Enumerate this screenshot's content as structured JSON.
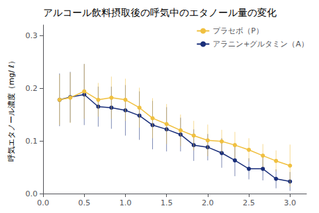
{
  "chart_data": {
    "type": "line",
    "title": "アルコール飲料摂取後の呼気中のエタノール量の変化",
    "y_label": "呼気エタノール濃度（mg/ ℓ）",
    "x": [
      0.2,
      0.33,
      0.5,
      0.67,
      0.83,
      1.0,
      1.17,
      1.33,
      1.5,
      1.67,
      1.83,
      2.0,
      2.17,
      2.33,
      2.5,
      2.67,
      2.83,
      3.0
    ],
    "series": [
      {
        "name": "プラセボ（P）",
        "color": "#f0c040",
        "values": [
          0.178,
          0.182,
          0.194,
          0.178,
          0.182,
          0.178,
          0.163,
          0.143,
          0.132,
          0.12,
          0.11,
          0.101,
          0.099,
          0.092,
          0.083,
          0.072,
          0.062,
          0.053
        ],
        "errors": [
          0.048,
          0.048,
          0.052,
          0.032,
          0.04,
          0.04,
          0.038,
          0.038,
          0.038,
          0.03,
          0.028,
          0.03,
          0.022,
          0.025,
          0.022,
          0.022,
          0.02,
          0.04
        ]
      },
      {
        "name": "アラニン+グルタミン（A）",
        "color": "#1a2f7a",
        "values": [
          0.178,
          0.183,
          0.188,
          0.165,
          0.163,
          0.158,
          0.148,
          0.13,
          0.122,
          0.112,
          0.092,
          0.088,
          0.077,
          0.063,
          0.047,
          0.047,
          0.028,
          0.023
        ],
        "errors": [
          0.05,
          0.048,
          0.058,
          0.038,
          0.04,
          0.048,
          0.046,
          0.046,
          0.042,
          0.032,
          0.03,
          0.025,
          0.028,
          0.03,
          0.02,
          0.022,
          0.018,
          0.018
        ]
      }
    ],
    "xlim": [
      0.0,
      3.2
    ],
    "ylim": [
      0,
      0.32
    ],
    "xticks": [
      {
        "value": 0,
        "label": "0.0"
      },
      0.5,
      {
        "value": 1,
        "label": "1.0"
      },
      1.5,
      {
        "value": 2,
        "label": "2.0"
      },
      2.5,
      {
        "value": 3,
        "label": "3.0"
      }
    ],
    "yticks": [
      {
        "value": 0,
        "label": "0.0"
      },
      0.1,
      0.2,
      0.3
    ],
    "grid": false,
    "legend": "upper right"
  }
}
